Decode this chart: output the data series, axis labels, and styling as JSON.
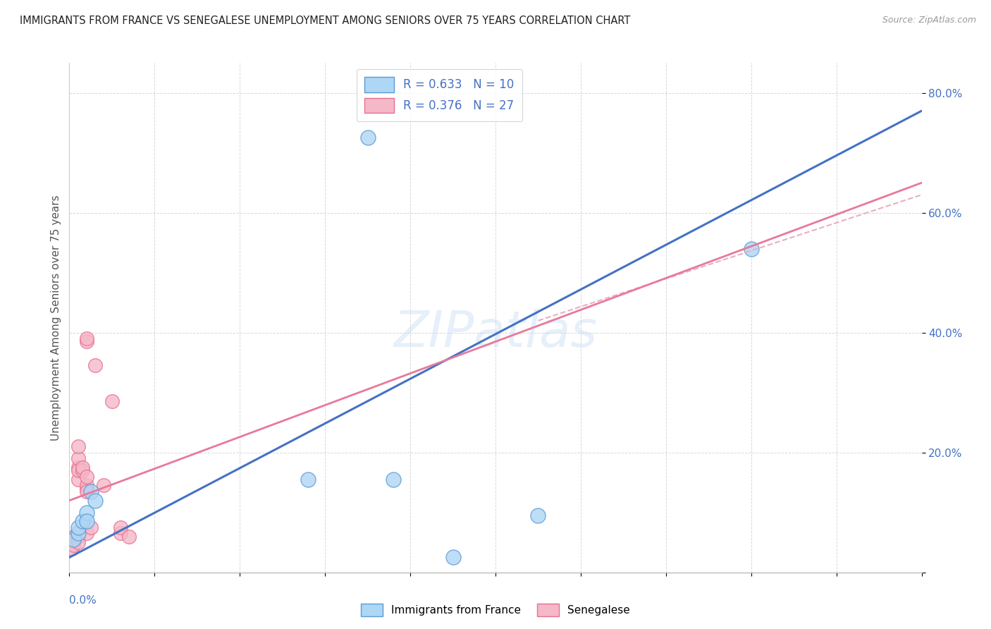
{
  "title": "IMMIGRANTS FROM FRANCE VS SENEGALESE UNEMPLOYMENT AMONG SENIORS OVER 75 YEARS CORRELATION CHART",
  "source": "Source: ZipAtlas.com",
  "ylabel": "Unemployment Among Seniors over 75 years",
  "xlim": [
    0.0,
    0.1
  ],
  "ylim": [
    0.0,
    0.85
  ],
  "yticks": [
    0.0,
    0.2,
    0.4,
    0.6,
    0.8
  ],
  "ytick_labels": [
    "",
    "20.0%",
    "40.0%",
    "60.0%",
    "80.0%"
  ],
  "xticks": [
    0.0,
    0.01,
    0.02,
    0.03,
    0.04,
    0.05,
    0.06,
    0.07,
    0.08,
    0.09,
    0.1
  ],
  "blue_scatter": [
    [
      0.0005,
      0.055
    ],
    [
      0.001,
      0.065
    ],
    [
      0.001,
      0.075
    ],
    [
      0.0015,
      0.085
    ],
    [
      0.002,
      0.1
    ],
    [
      0.002,
      0.085
    ],
    [
      0.0025,
      0.135
    ],
    [
      0.003,
      0.12
    ],
    [
      0.028,
      0.155
    ],
    [
      0.035,
      0.725
    ],
    [
      0.038,
      0.155
    ],
    [
      0.045,
      0.025
    ],
    [
      0.055,
      0.095
    ],
    [
      0.08,
      0.54
    ]
  ],
  "pink_scatter": [
    [
      0.0003,
      0.05
    ],
    [
      0.0003,
      0.04
    ],
    [
      0.0005,
      0.06
    ],
    [
      0.0005,
      0.045
    ],
    [
      0.001,
      0.175
    ],
    [
      0.001,
      0.19
    ],
    [
      0.001,
      0.21
    ],
    [
      0.001,
      0.155
    ],
    [
      0.001,
      0.17
    ],
    [
      0.001,
      0.06
    ],
    [
      0.001,
      0.05
    ],
    [
      0.0015,
      0.17
    ],
    [
      0.0015,
      0.175
    ],
    [
      0.002,
      0.385
    ],
    [
      0.002,
      0.39
    ],
    [
      0.002,
      0.14
    ],
    [
      0.002,
      0.145
    ],
    [
      0.002,
      0.16
    ],
    [
      0.002,
      0.135
    ],
    [
      0.002,
      0.065
    ],
    [
      0.0025,
      0.075
    ],
    [
      0.003,
      0.345
    ],
    [
      0.004,
      0.145
    ],
    [
      0.005,
      0.285
    ],
    [
      0.006,
      0.065
    ],
    [
      0.006,
      0.075
    ],
    [
      0.007,
      0.06
    ]
  ],
  "blue_line": [
    0.0,
    0.025,
    0.1,
    0.77
  ],
  "pink_line": [
    0.0,
    0.12,
    0.1,
    0.65
  ],
  "pink_dashed_line": [
    0.055,
    0.42,
    0.1,
    0.63
  ],
  "blue_color": "#aed6f5",
  "pink_color": "#f5b8c8",
  "blue_edge_color": "#5b9bd5",
  "pink_edge_color": "#e87090",
  "blue_line_color": "#4472c4",
  "pink_line_color": "#e8799a",
  "pink_dashed_color": "#e8b0c0",
  "watermark": "ZIPatlas",
  "background_color": "#ffffff",
  "title_color": "#222222",
  "tick_color": "#4472c4"
}
